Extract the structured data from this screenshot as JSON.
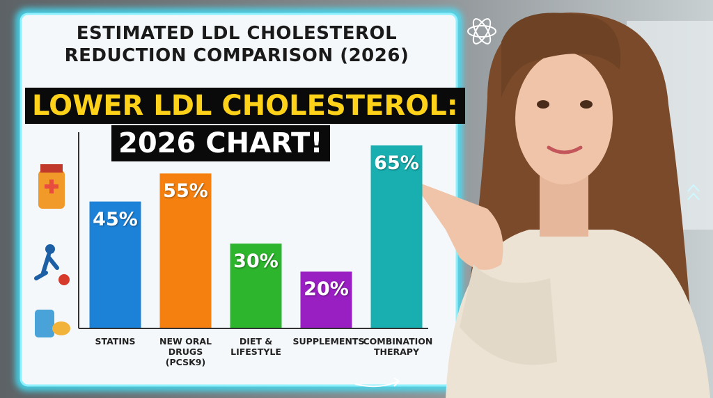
{
  "chart_data": {
    "type": "bar",
    "title": "ESTIMATED LDL CHOLESTEROL REDUCTION COMPARISON (2026)",
    "headline": [
      "LOWER LDL CHOLESTEROL:",
      "2026 CHART!"
    ],
    "categories": [
      "STATINS",
      "NEW ORAL DRUGS (PCSK9)",
      "DIET & LIFESTYLE",
      "SUPPLEMENTS",
      "COMBINATION THERAPY"
    ],
    "values": [
      45,
      55,
      30,
      20,
      65
    ],
    "value_labels": [
      "45%",
      "55%",
      "30%",
      "20%",
      "65%"
    ],
    "colors": [
      "#1c82d8",
      "#f5800f",
      "#2db52d",
      "#9a1fc2",
      "#19afb0"
    ]
  }
}
